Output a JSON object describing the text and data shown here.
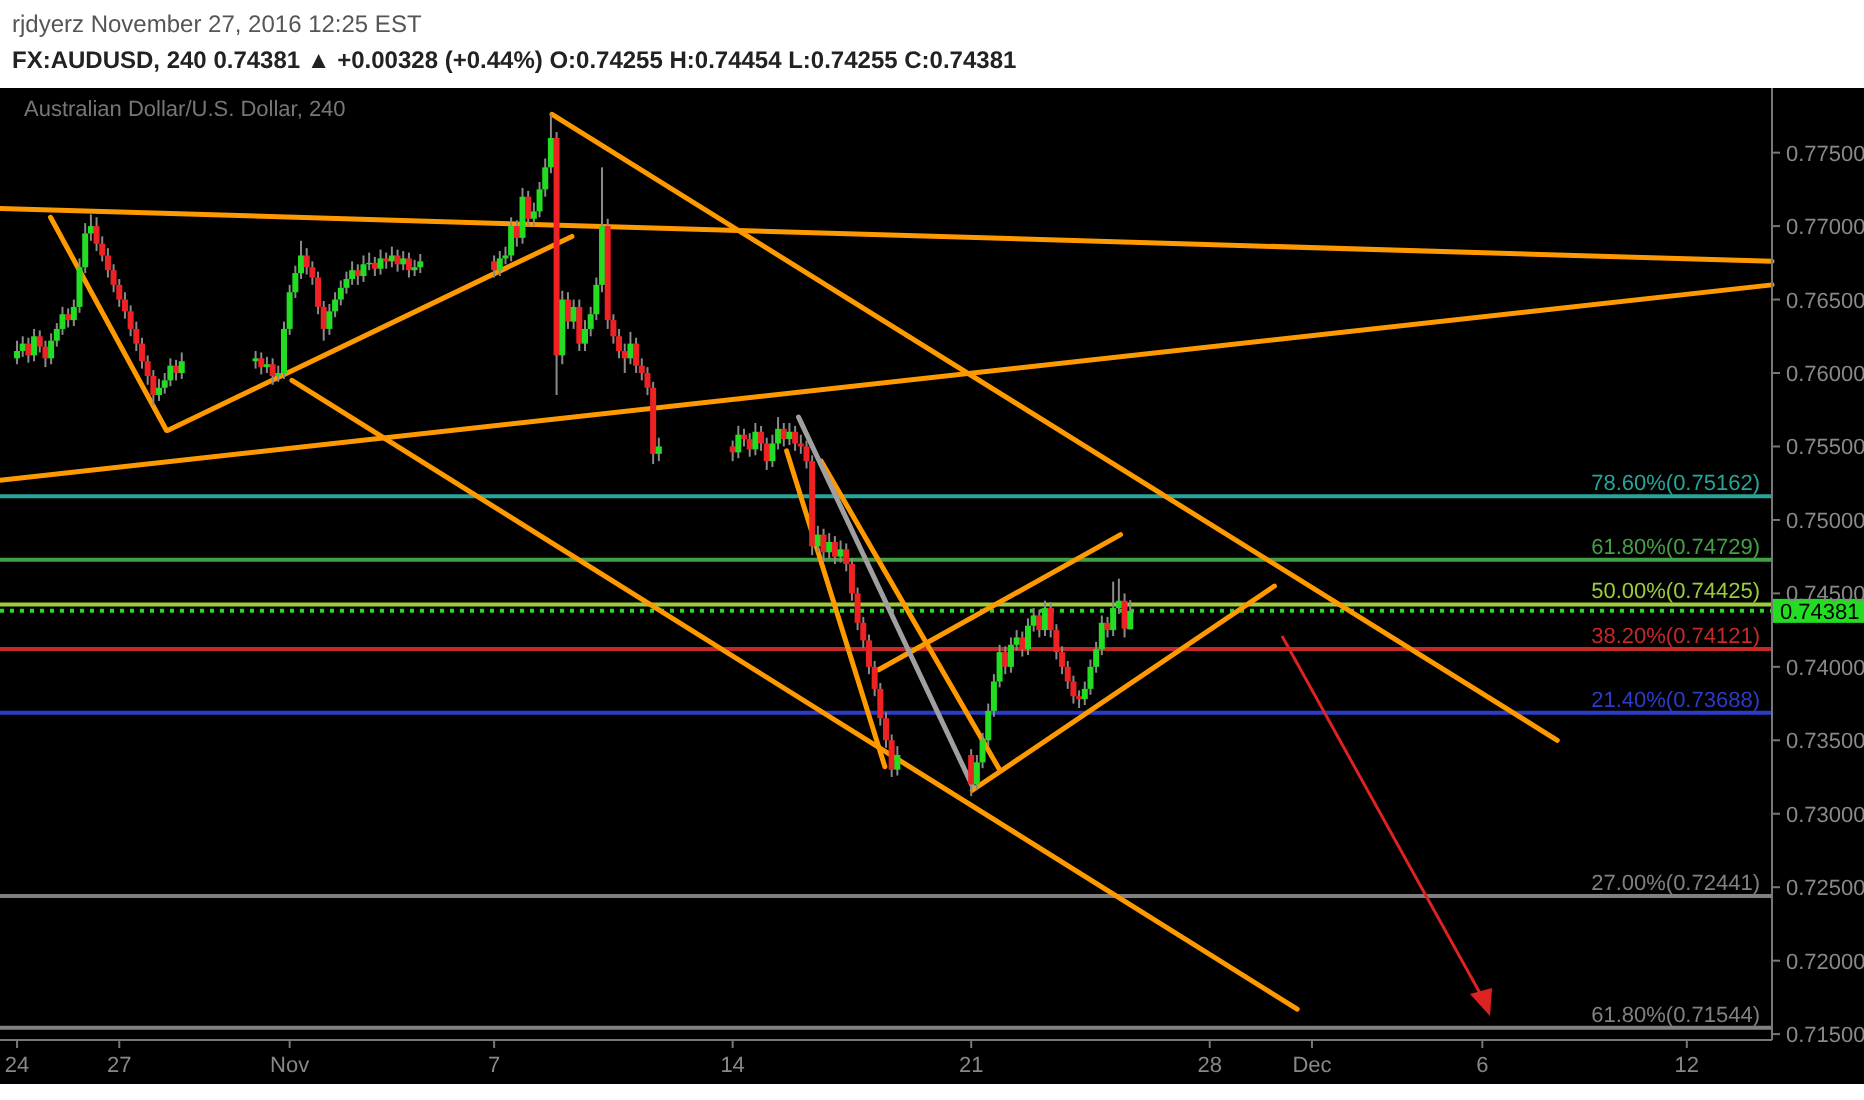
{
  "chart_data": {
    "type": "candlestick",
    "title": "rjdyerz November 27, 2016 12:25 EST",
    "subtitle": "FX:AUDUSD, 240  0.74381 ▲ +0.00328 (+0.44%)  O:0.74255  H:0.74454  L:0.74255  C:0.74381",
    "annotations": [
      "Australian Dollar/U.S. Dollar, 240"
    ],
    "x": [
      "2016-10-24T00:00",
      "2016-10-24T04:00",
      "2016-10-24T08:00",
      "2016-10-24T12:00",
      "2016-10-24T16:00",
      "2016-10-24T20:00",
      "2016-10-25T00:00",
      "2016-10-25T04:00",
      "2016-10-25T08:00",
      "2016-10-25T12:00",
      "2016-10-25T16:00",
      "2016-10-25T20:00",
      "2016-10-26T00:00",
      "2016-10-26T04:00",
      "2016-10-26T08:00",
      "2016-10-26T12:00",
      "2016-10-26T16:00",
      "2016-10-26T20:00",
      "2016-10-27T00:00",
      "2016-10-27T04:00",
      "2016-10-27T08:00",
      "2016-10-27T12:00",
      "2016-10-27T16:00",
      "2016-10-27T20:00",
      "2016-10-28T00:00",
      "2016-10-28T04:00",
      "2016-10-28T08:00",
      "2016-10-28T12:00",
      "2016-10-28T16:00",
      "2016-10-28T20:00",
      "2016-10-31T00:00",
      "2016-10-31T04:00",
      "2016-10-31T08:00",
      "2016-10-31T12:00",
      "2016-10-31T16:00",
      "2016-10-31T20:00",
      "2016-11-01T00:00",
      "2016-11-01T04:00",
      "2016-11-01T08:00",
      "2016-11-01T12:00",
      "2016-11-01T16:00",
      "2016-11-01T20:00",
      "2016-11-02T00:00",
      "2016-11-02T04:00",
      "2016-11-02T08:00",
      "2016-11-02T12:00",
      "2016-11-02T16:00",
      "2016-11-02T20:00",
      "2016-11-03T00:00",
      "2016-11-03T04:00",
      "2016-11-03T08:00",
      "2016-11-03T12:00",
      "2016-11-03T16:00",
      "2016-11-03T20:00",
      "2016-11-04T00:00",
      "2016-11-04T04:00",
      "2016-11-04T08:00",
      "2016-11-04T12:00",
      "2016-11-04T16:00",
      "2016-11-04T20:00",
      "2016-11-07T00:00",
      "2016-11-07T04:00",
      "2016-11-07T08:00",
      "2016-11-07T12:00",
      "2016-11-07T16:00",
      "2016-11-07T20:00",
      "2016-11-08T00:00",
      "2016-11-08T04:00",
      "2016-11-08T08:00",
      "2016-11-08T12:00",
      "2016-11-08T16:00",
      "2016-11-08T20:00",
      "2016-11-09T00:00",
      "2016-11-09T04:00",
      "2016-11-09T08:00",
      "2016-11-09T12:00",
      "2016-11-09T16:00",
      "2016-11-09T20:00",
      "2016-11-10T00:00",
      "2016-11-10T04:00",
      "2016-11-10T08:00",
      "2016-11-10T12:00",
      "2016-11-10T16:00",
      "2016-11-10T20:00",
      "2016-11-11T00:00",
      "2016-11-11T04:00",
      "2016-11-11T08:00",
      "2016-11-11T12:00",
      "2016-11-11T16:00",
      "2016-11-11T20:00",
      "2016-11-14T00:00",
      "2016-11-14T04:00",
      "2016-11-14T08:00",
      "2016-11-14T12:00",
      "2016-11-14T16:00",
      "2016-11-14T20:00",
      "2016-11-15T00:00",
      "2016-11-15T04:00",
      "2016-11-15T08:00",
      "2016-11-15T12:00",
      "2016-11-15T16:00",
      "2016-11-15T20:00",
      "2016-11-16T00:00",
      "2016-11-16T04:00",
      "2016-11-16T08:00",
      "2016-11-16T12:00",
      "2016-11-16T16:00",
      "2016-11-16T20:00",
      "2016-11-17T00:00",
      "2016-11-17T04:00",
      "2016-11-17T08:00",
      "2016-11-17T12:00",
      "2016-11-17T16:00",
      "2016-11-17T20:00",
      "2016-11-18T00:00",
      "2016-11-18T04:00",
      "2016-11-18T08:00",
      "2016-11-18T12:00",
      "2016-11-18T16:00",
      "2016-11-18T20:00",
      "2016-11-21T00:00",
      "2016-11-21T04:00",
      "2016-11-21T08:00",
      "2016-11-21T12:00",
      "2016-11-21T16:00",
      "2016-11-21T20:00",
      "2016-11-22T00:00",
      "2016-11-22T04:00",
      "2016-11-22T08:00",
      "2016-11-22T12:00",
      "2016-11-22T16:00",
      "2016-11-22T20:00",
      "2016-11-23T00:00",
      "2016-11-23T04:00",
      "2016-11-23T08:00",
      "2016-11-23T12:00",
      "2016-11-23T16:00",
      "2016-11-23T20:00",
      "2016-11-24T00:00",
      "2016-11-24T04:00",
      "2016-11-24T08:00",
      "2016-11-24T12:00",
      "2016-11-24T16:00",
      "2016-11-24T20:00",
      "2016-11-25T00:00",
      "2016-11-25T04:00",
      "2016-11-25T08:00",
      "2016-11-25T12:00",
      "2016-11-25T16:00"
    ],
    "ohlc": [
      [
        0.761,
        0.7622,
        0.7606,
        0.7615
      ],
      [
        0.7615,
        0.7625,
        0.7611,
        0.762
      ],
      [
        0.762,
        0.7624,
        0.7607,
        0.7612
      ],
      [
        0.7612,
        0.763,
        0.7608,
        0.7625
      ],
      [
        0.7625,
        0.7629,
        0.7614,
        0.7618
      ],
      [
        0.7618,
        0.7622,
        0.7604,
        0.761
      ],
      [
        0.761,
        0.7627,
        0.7606,
        0.7622
      ],
      [
        0.7622,
        0.7634,
        0.7618,
        0.763
      ],
      [
        0.763,
        0.7645,
        0.7626,
        0.764
      ],
      [
        0.764,
        0.7644,
        0.7631,
        0.7636
      ],
      [
        0.7636,
        0.765,
        0.7632,
        0.7645
      ],
      [
        0.7645,
        0.7678,
        0.7641,
        0.7672
      ],
      [
        0.7672,
        0.7702,
        0.7668,
        0.7695
      ],
      [
        0.7695,
        0.7708,
        0.769,
        0.77
      ],
      [
        0.77,
        0.7706,
        0.7683,
        0.7688
      ],
      [
        0.7688,
        0.7693,
        0.7676,
        0.768
      ],
      [
        0.768,
        0.7685,
        0.7665,
        0.767
      ],
      [
        0.767,
        0.7674,
        0.7655,
        0.766
      ],
      [
        0.766,
        0.7664,
        0.7645,
        0.765
      ],
      [
        0.765,
        0.7655,
        0.7637,
        0.7642
      ],
      [
        0.7642,
        0.7646,
        0.7625,
        0.763
      ],
      [
        0.763,
        0.7635,
        0.7615,
        0.762
      ],
      [
        0.762,
        0.7624,
        0.7603,
        0.7608
      ],
      [
        0.7608,
        0.7612,
        0.7592,
        0.7598
      ],
      [
        0.7598,
        0.7602,
        0.7578,
        0.7585
      ],
      [
        0.7585,
        0.7596,
        0.7581,
        0.759
      ],
      [
        0.759,
        0.76,
        0.7586,
        0.7595
      ],
      [
        0.7595,
        0.761,
        0.7591,
        0.7605
      ],
      [
        0.7605,
        0.7609,
        0.7595,
        0.76
      ],
      [
        0.76,
        0.7614,
        0.7596,
        0.7608
      ],
      [
        0.7608,
        0.7615,
        0.7603,
        0.761
      ],
      [
        0.761,
        0.7614,
        0.7599,
        0.7604
      ],
      [
        0.7604,
        0.7611,
        0.76,
        0.7606
      ],
      [
        0.7606,
        0.761,
        0.7592,
        0.7598
      ],
      [
        0.7598,
        0.7605,
        0.7594,
        0.76
      ],
      [
        0.76,
        0.7635,
        0.7596,
        0.763
      ],
      [
        0.763,
        0.766,
        0.7626,
        0.7655
      ],
      [
        0.7655,
        0.7673,
        0.7651,
        0.7668
      ],
      [
        0.7668,
        0.769,
        0.7664,
        0.768
      ],
      [
        0.768,
        0.7685,
        0.7667,
        0.7672
      ],
      [
        0.7672,
        0.7676,
        0.766,
        0.7665
      ],
      [
        0.7665,
        0.7669,
        0.764,
        0.7645
      ],
      [
        0.7645,
        0.7649,
        0.7622,
        0.763
      ],
      [
        0.763,
        0.7647,
        0.7626,
        0.7642
      ],
      [
        0.7642,
        0.7655,
        0.7638,
        0.765
      ],
      [
        0.765,
        0.7663,
        0.7646,
        0.7658
      ],
      [
        0.7658,
        0.7669,
        0.7654,
        0.7664
      ],
      [
        0.7664,
        0.7676,
        0.766,
        0.767
      ],
      [
        0.767,
        0.7674,
        0.766,
        0.7666
      ],
      [
        0.7666,
        0.768,
        0.7662,
        0.7674
      ],
      [
        0.7674,
        0.7682,
        0.767,
        0.7675
      ],
      [
        0.7675,
        0.7679,
        0.7666,
        0.7671
      ],
      [
        0.7671,
        0.7684,
        0.7667,
        0.7678
      ],
      [
        0.7678,
        0.7682,
        0.7671,
        0.7676
      ],
      [
        0.7676,
        0.7686,
        0.7672,
        0.768
      ],
      [
        0.768,
        0.7684,
        0.7669,
        0.7674
      ],
      [
        0.7674,
        0.7683,
        0.767,
        0.7678
      ],
      [
        0.7678,
        0.7682,
        0.7665,
        0.767
      ],
      [
        0.767,
        0.7677,
        0.7666,
        0.7672
      ],
      [
        0.7672,
        0.7681,
        0.7668,
        0.7676
      ],
      [
        0.7676,
        0.768,
        0.7665,
        0.767
      ],
      [
        0.767,
        0.7683,
        0.7666,
        0.7678
      ],
      [
        0.7678,
        0.7686,
        0.7674,
        0.768
      ],
      [
        0.768,
        0.7706,
        0.7676,
        0.77
      ],
      [
        0.77,
        0.7704,
        0.7686,
        0.7692
      ],
      [
        0.7692,
        0.7726,
        0.7688,
        0.772
      ],
      [
        0.772,
        0.7724,
        0.77,
        0.7705
      ],
      [
        0.7705,
        0.7716,
        0.77,
        0.771
      ],
      [
        0.771,
        0.773,
        0.7706,
        0.7725
      ],
      [
        0.7725,
        0.7746,
        0.772,
        0.774
      ],
      [
        0.774,
        0.7776,
        0.7736,
        0.776
      ],
      [
        0.776,
        0.7764,
        0.7585,
        0.7612
      ],
      [
        0.7612,
        0.7656,
        0.7606,
        0.765
      ],
      [
        0.765,
        0.7655,
        0.763,
        0.7635
      ],
      [
        0.7635,
        0.765,
        0.763,
        0.7645
      ],
      [
        0.7645,
        0.765,
        0.7615,
        0.762
      ],
      [
        0.762,
        0.7636,
        0.7615,
        0.763
      ],
      [
        0.763,
        0.7645,
        0.7625,
        0.764
      ],
      [
        0.764,
        0.7665,
        0.7636,
        0.766
      ],
      [
        0.766,
        0.774,
        0.7655,
        0.77
      ],
      [
        0.77,
        0.7705,
        0.763,
        0.7636
      ],
      [
        0.7636,
        0.764,
        0.762,
        0.7625
      ],
      [
        0.7625,
        0.763,
        0.761,
        0.7615
      ],
      [
        0.7615,
        0.762,
        0.76,
        0.761
      ],
      [
        0.761,
        0.7628,
        0.7606,
        0.762
      ],
      [
        0.762,
        0.7624,
        0.76,
        0.7605
      ],
      [
        0.7605,
        0.761,
        0.7595,
        0.76
      ],
      [
        0.76,
        0.7604,
        0.7585,
        0.759
      ],
      [
        0.759,
        0.7594,
        0.7538,
        0.7545
      ],
      [
        0.7545,
        0.7556,
        0.754,
        0.755
      ],
      [
        0.755,
        0.7554,
        0.754,
        0.7546
      ],
      [
        0.7546,
        0.7564,
        0.7542,
        0.7558
      ],
      [
        0.7558,
        0.7562,
        0.755,
        0.7555
      ],
      [
        0.7555,
        0.7559,
        0.7543,
        0.7548
      ],
      [
        0.7548,
        0.7566,
        0.7544,
        0.756
      ],
      [
        0.756,
        0.7564,
        0.7547,
        0.7552
      ],
      [
        0.7552,
        0.7556,
        0.7534,
        0.754
      ],
      [
        0.754,
        0.7558,
        0.7536,
        0.7552
      ],
      [
        0.7552,
        0.757,
        0.7548,
        0.7562
      ],
      [
        0.7562,
        0.7566,
        0.755,
        0.7555
      ],
      [
        0.7555,
        0.7566,
        0.7551,
        0.756
      ],
      [
        0.756,
        0.7564,
        0.7547,
        0.7552
      ],
      [
        0.7552,
        0.7558,
        0.7545,
        0.755
      ],
      [
        0.755,
        0.7554,
        0.7535,
        0.754
      ],
      [
        0.754,
        0.7544,
        0.7476,
        0.7482
      ],
      [
        0.7482,
        0.7496,
        0.7478,
        0.749
      ],
      [
        0.749,
        0.7494,
        0.7472,
        0.7478
      ],
      [
        0.7478,
        0.7491,
        0.7474,
        0.7485
      ],
      [
        0.7485,
        0.7489,
        0.747,
        0.7475
      ],
      [
        0.7475,
        0.7486,
        0.7471,
        0.748
      ],
      [
        0.748,
        0.7484,
        0.7465,
        0.747
      ],
      [
        0.747,
        0.7474,
        0.7445,
        0.745
      ],
      [
        0.745,
        0.7454,
        0.7425,
        0.743
      ],
      [
        0.743,
        0.7434,
        0.7413,
        0.7418
      ],
      [
        0.7418,
        0.7422,
        0.7395,
        0.74
      ],
      [
        0.74,
        0.7404,
        0.738,
        0.7385
      ],
      [
        0.7385,
        0.7389,
        0.736,
        0.7365
      ],
      [
        0.7365,
        0.7369,
        0.7345,
        0.735
      ],
      [
        0.735,
        0.7354,
        0.7325,
        0.733
      ],
      [
        0.733,
        0.7346,
        0.7326,
        0.734
      ],
      [
        0.734,
        0.7344,
        0.7312,
        0.732
      ],
      [
        0.732,
        0.734,
        0.7316,
        0.7335
      ],
      [
        0.7335,
        0.7355,
        0.7331,
        0.735
      ],
      [
        0.735,
        0.7375,
        0.7346,
        0.737
      ],
      [
        0.737,
        0.7395,
        0.7366,
        0.739
      ],
      [
        0.739,
        0.7415,
        0.7386,
        0.741
      ],
      [
        0.741,
        0.7414,
        0.7395,
        0.74
      ],
      [
        0.74,
        0.742,
        0.7396,
        0.7415
      ],
      [
        0.7415,
        0.7425,
        0.7411,
        0.742
      ],
      [
        0.742,
        0.7424,
        0.7407,
        0.7412
      ],
      [
        0.7412,
        0.7433,
        0.7408,
        0.7428
      ],
      [
        0.7428,
        0.744,
        0.7424,
        0.7435
      ],
      [
        0.7435,
        0.7439,
        0.742,
        0.7425
      ],
      [
        0.7425,
        0.7445,
        0.7421,
        0.744
      ],
      [
        0.744,
        0.7444,
        0.742,
        0.7425
      ],
      [
        0.7425,
        0.7429,
        0.7405,
        0.741
      ],
      [
        0.741,
        0.7414,
        0.7395,
        0.74
      ],
      [
        0.74,
        0.7404,
        0.7385,
        0.739
      ],
      [
        0.739,
        0.7394,
        0.7375,
        0.738
      ],
      [
        0.738,
        0.7384,
        0.7372,
        0.7378
      ],
      [
        0.7378,
        0.739,
        0.7374,
        0.7385
      ],
      [
        0.7385,
        0.7405,
        0.7381,
        0.74
      ],
      [
        0.74,
        0.7417,
        0.7396,
        0.7412
      ],
      [
        0.7412,
        0.7435,
        0.7408,
        0.743
      ],
      [
        0.743,
        0.7434,
        0.742,
        0.7425
      ],
      [
        0.7425,
        0.7458,
        0.7421,
        0.744
      ],
      [
        0.744,
        0.746,
        0.7436,
        0.7445
      ],
      [
        0.7445,
        0.745,
        0.742,
        0.7426
      ],
      [
        0.74255,
        0.74454,
        0.74255,
        0.74381
      ]
    ],
    "series": [
      {
        "type": "line",
        "color": "#ff9900",
        "x": [
          "2016-10-23T12:00",
          "2016-12-14T12:00"
        ],
        "values": [
          0.7712,
          0.7676
        ]
      },
      {
        "type": "line",
        "color": "#ff9900",
        "x": [
          "2016-10-23T12:00",
          "2016-12-14T12:00"
        ],
        "values": [
          0.7527,
          0.766
        ]
      },
      {
        "type": "line",
        "color": "#ff9900",
        "x": [
          "2016-10-24T23:36",
          "2016-10-28T09:12"
        ],
        "values": [
          0.7706,
          0.7561
        ]
      },
      {
        "type": "line",
        "color": "#ff9900",
        "x": [
          "2016-10-28T10:24",
          "2016-11-09T06:48"
        ],
        "values": [
          0.7561,
          0.7693
        ]
      },
      {
        "type": "line",
        "color": "#ff9900",
        "x": [
          "2016-11-01T01:36",
          "2016-11-30T13:36"
        ],
        "values": [
          0.7595,
          0.7167
        ]
      },
      {
        "type": "line",
        "color": "#ff9900",
        "x": [
          "2016-11-08T16:48",
          "2016-12-08T04:48"
        ],
        "values": [
          0.7776,
          0.735
        ]
      },
      {
        "type": "line",
        "color": "#ff9900",
        "x": [
          "2016-11-15T14:00",
          "2016-11-18T11:12"
        ],
        "values": [
          0.7547,
          0.7332
        ]
      },
      {
        "type": "line",
        "color": "#ff9900",
        "x": [
          "2016-11-16T14:24",
          "2016-11-21T20:00"
        ],
        "values": [
          0.754,
          0.733
        ]
      },
      {
        "type": "line",
        "color": "#ff9900",
        "x": [
          "2016-11-18T06:48",
          "2016-11-25T09:12"
        ],
        "values": [
          0.7398,
          0.749
        ]
      },
      {
        "type": "line",
        "color": "#ff9900",
        "x": [
          "2016-11-21T00:48",
          "2016-11-29T21:36"
        ],
        "values": [
          0.7316,
          0.7455
        ]
      },
      {
        "type": "line",
        "color": "#a0a0a0",
        "x": [
          "2016-11-15T22:24",
          "2016-11-21T00:48"
        ],
        "values": [
          0.757,
          0.7319
        ]
      }
    ],
    "ref_lines": [
      {
        "axis": "y",
        "value": 0.75162,
        "label": "78.60%(0.75162)",
        "color": "#26a69a"
      },
      {
        "axis": "y",
        "value": 0.74729,
        "label": "61.80%(0.74729)",
        "color": "#43a047"
      },
      {
        "axis": "y",
        "value": 0.74425,
        "label": "50.00%(0.74425)",
        "color": "#9ccc3c"
      },
      {
        "axis": "y",
        "value": 0.74121,
        "label": "38.20%(0.74121)",
        "color": "#c62828"
      },
      {
        "axis": "y",
        "value": 0.73688,
        "label": "21.40%(0.73688)",
        "color": "#2c3cc8"
      },
      {
        "axis": "y",
        "value": 0.72441,
        "label": "27.00%(0.72441)",
        "color": "#808080"
      },
      {
        "axis": "y",
        "value": 0.71544,
        "label": "61.80%(0.71544)",
        "color": "#808080"
      },
      {
        "axis": "y",
        "value": 0.74381,
        "label": "0.74381",
        "color": "#22dd22",
        "line_style": "dotted"
      }
    ],
    "xlim": [
      "2016-10-23T12:00",
      "2016-12-14T12:00"
    ],
    "xticks": [
      {
        "value": "2016-10-24",
        "label": "24"
      },
      {
        "value": "2016-10-27",
        "label": "27"
      },
      {
        "value": "2016-11-01",
        "label": "Nov"
      },
      {
        "value": "2016-11-07",
        "label": "7"
      },
      {
        "value": "2016-11-14",
        "label": "14"
      },
      {
        "value": "2016-11-21",
        "label": "21"
      },
      {
        "value": "2016-11-28",
        "label": "28"
      },
      {
        "value": "2016-12-01",
        "label": "Dec"
      },
      {
        "value": "2016-12-06",
        "label": "6"
      },
      {
        "value": "2016-12-12",
        "label": "12"
      }
    ],
    "ylim": [
      0.7146,
      0.7794
    ],
    "yticks": [
      {
        "value": 0.715,
        "label": "0.71500"
      },
      {
        "value": 0.72,
        "label": "0.72000"
      },
      {
        "value": 0.725,
        "label": "0.72500"
      },
      {
        "value": 0.73,
        "label": "0.73000"
      },
      {
        "value": 0.735,
        "label": "0.73500"
      },
      {
        "value": 0.74,
        "label": "0.74000"
      },
      {
        "value": 0.745,
        "label": "0.74500"
      },
      {
        "value": 0.75,
        "label": "0.75000"
      },
      {
        "value": 0.755,
        "label": "0.75500"
      },
      {
        "value": 0.76,
        "label": "0.76000"
      },
      {
        "value": 0.765,
        "label": "0.76500"
      },
      {
        "value": 0.77,
        "label": "0.77000"
      },
      {
        "value": 0.775,
        "label": "0.77500"
      }
    ],
    "grid": false
  }
}
